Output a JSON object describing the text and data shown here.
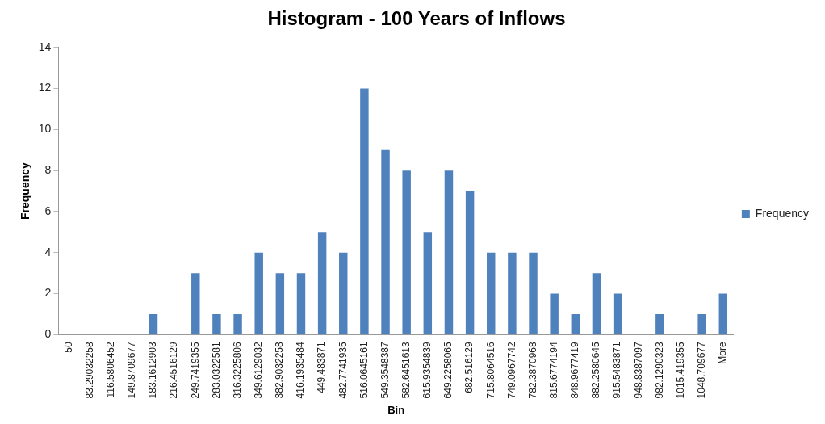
{
  "chart_data": {
    "type": "bar",
    "title": "Histogram - 100 Years of Inflows",
    "xlabel": "Bin",
    "ylabel": "Frequency",
    "categories": [
      "50",
      "83.29032258",
      "116.5806452",
      "149.8709677",
      "183.1612903",
      "216.4516129",
      "249.7419355",
      "283.0322581",
      "316.3225806",
      "349.6129032",
      "382.9032258",
      "416.1935484",
      "449.483871",
      "482.7741935",
      "516.0645161",
      "549.3548387",
      "582.6451613",
      "615.9354839",
      "649.2258065",
      "682.516129",
      "715.8064516",
      "749.0967742",
      "782.3870968",
      "815.6774194",
      "848.9677419",
      "882.2580645",
      "915.5483871",
      "948.8387097",
      "982.1290323",
      "1015.419355",
      "1048.709677",
      "More"
    ],
    "series": [
      {
        "name": "Frequency",
        "color": "#4f81bd",
        "values": [
          0,
          0,
          0,
          0,
          1,
          0,
          3,
          1,
          1,
          4,
          3,
          3,
          5,
          4,
          12,
          9,
          8,
          5,
          8,
          7,
          4,
          4,
          4,
          2,
          1,
          3,
          2,
          0,
          1,
          0,
          1,
          2
        ]
      }
    ],
    "ylim": [
      0,
      14
    ],
    "yticks": [
      0,
      2,
      4,
      6,
      8,
      10,
      12,
      14
    ],
    "grid": false,
    "legend": "right"
  }
}
